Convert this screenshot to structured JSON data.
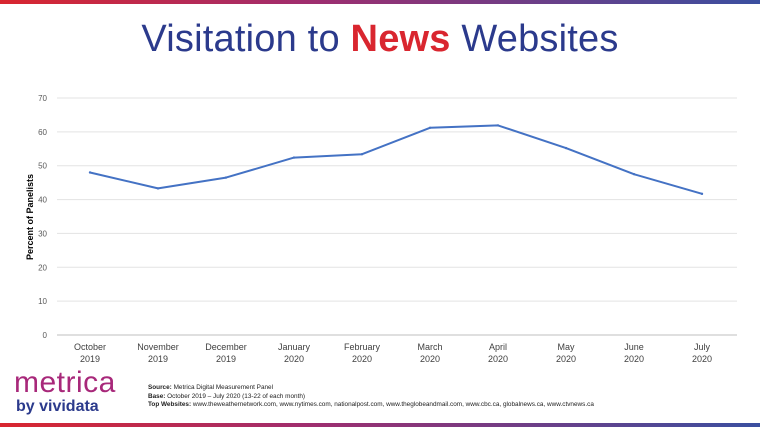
{
  "title": {
    "before": "Visitation to ",
    "highlight": "News",
    "after": " Websites"
  },
  "chart_data": {
    "type": "line",
    "categories": [
      [
        "October",
        "2019"
      ],
      [
        "November",
        "2019"
      ],
      [
        "December",
        "2019"
      ],
      [
        "January",
        "2020"
      ],
      [
        "February",
        "2020"
      ],
      [
        "March",
        "2020"
      ],
      [
        "April",
        "2020"
      ],
      [
        "May",
        "2020"
      ],
      [
        "June",
        "2020"
      ],
      [
        "July",
        "2020"
      ]
    ],
    "series": [
      {
        "values": [
          48,
          43.3,
          46.5,
          52.4,
          53.4,
          61.2,
          61.9,
          55.2,
          47.5,
          41.7
        ]
      }
    ],
    "ylabel": "Percent of Panelists",
    "ylim": [
      0,
      70
    ],
    "yticks": [
      0,
      10,
      20,
      30,
      40,
      50,
      60,
      70
    ],
    "grid": true,
    "line_color": "#4472c4"
  },
  "logo": {
    "main": "metrica",
    "sub": "by vividata"
  },
  "source": {
    "source_label": "Source:",
    "source_text": " Metrica Digital Measurement Panel",
    "base_label": "Base:",
    "base_text": " October 2019 – July 2020 (13-22 of each month)",
    "top_label": "Top Websites:",
    "top_text": " www.theweathernetwork.com, www.nytimes.com, nationalpost.com, www.theglobeandmail.com, www.cbc.ca, globalnews.ca, www.ctvnews.ca"
  }
}
